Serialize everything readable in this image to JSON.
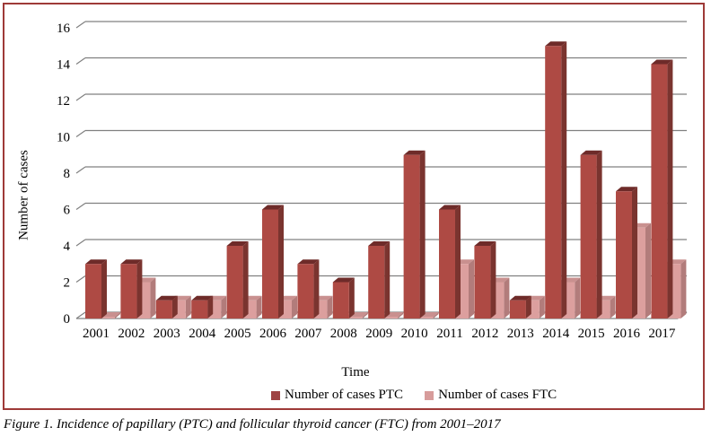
{
  "figure": {
    "caption": "Figure 1. Incidence of papillary (PTC) and follicular thyroid cancer (FTC) from 2001–2017"
  },
  "chart_data": {
    "type": "bar",
    "style": "3d-clustered-column",
    "title": "",
    "xlabel": "Time",
    "ylabel": "Number of cases",
    "ylim": [
      0,
      16
    ],
    "ytick_step": 2,
    "grid": true,
    "legend_position": "bottom",
    "categories": [
      "2001",
      "2002",
      "2003",
      "2004",
      "2005",
      "2006",
      "2007",
      "2008",
      "2009",
      "2010",
      "2011",
      "2012",
      "2013",
      "2014",
      "2015",
      "2016",
      "2017"
    ],
    "series": [
      {
        "name": "Number of cases PTC",
        "values": [
          3,
          3,
          1,
          1,
          4,
          6,
          3,
          2,
          4,
          9,
          6,
          4,
          1,
          15,
          9,
          7,
          14
        ],
        "front_color": "#ae4a44",
        "side_color": "#7a342f",
        "top_color": "#6e2b29",
        "legend_color": "#9e4343"
      },
      {
        "name": "Number of cases FTC",
        "values": [
          0,
          2,
          1,
          1,
          1,
          1,
          1,
          0,
          0,
          0,
          3,
          2,
          1,
          2,
          1,
          5,
          3
        ],
        "front_color": "#dc9f9e",
        "side_color": "#b27c7b",
        "top_color": "#c9908f",
        "legend_color": "#d79c9b"
      }
    ],
    "colors": {
      "grid": "#808080",
      "frame_border": "#9e3a38",
      "text": "#000000"
    }
  }
}
